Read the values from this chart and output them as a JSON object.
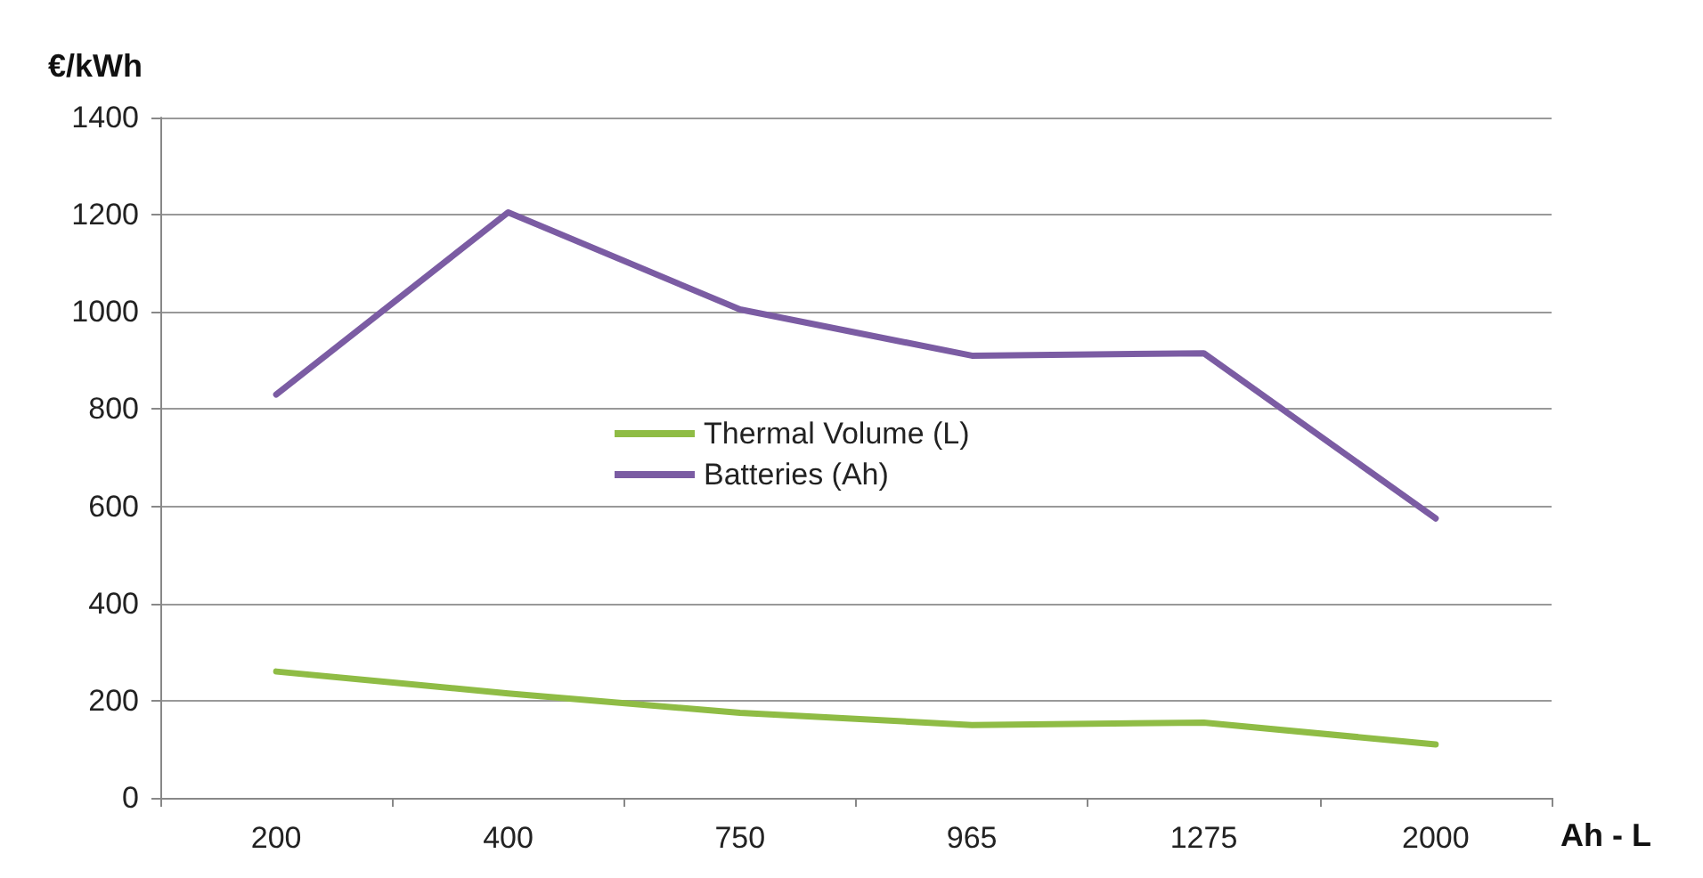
{
  "chart_data": {
    "type": "line",
    "ylabel": "€/kWh",
    "xlabel": "Ah - L",
    "categories": [
      "200",
      "400",
      "750",
      "965",
      "1275",
      "2000"
    ],
    "series": [
      {
        "name": "Thermal Volume (L)",
        "color": "#8fbc45",
        "values": [
          260,
          215,
          175,
          150,
          155,
          110
        ]
      },
      {
        "name": "Batteries (Ah)",
        "color": "#7b5ca3",
        "values": [
          830,
          1205,
          1005,
          910,
          915,
          575
        ]
      }
    ],
    "ylim": [
      0,
      1400
    ],
    "yticks": [
      0,
      200,
      400,
      600,
      800,
      1000,
      1200,
      1400
    ],
    "grid": "y",
    "legend": "center",
    "marker": "none",
    "line_style": "solid"
  }
}
